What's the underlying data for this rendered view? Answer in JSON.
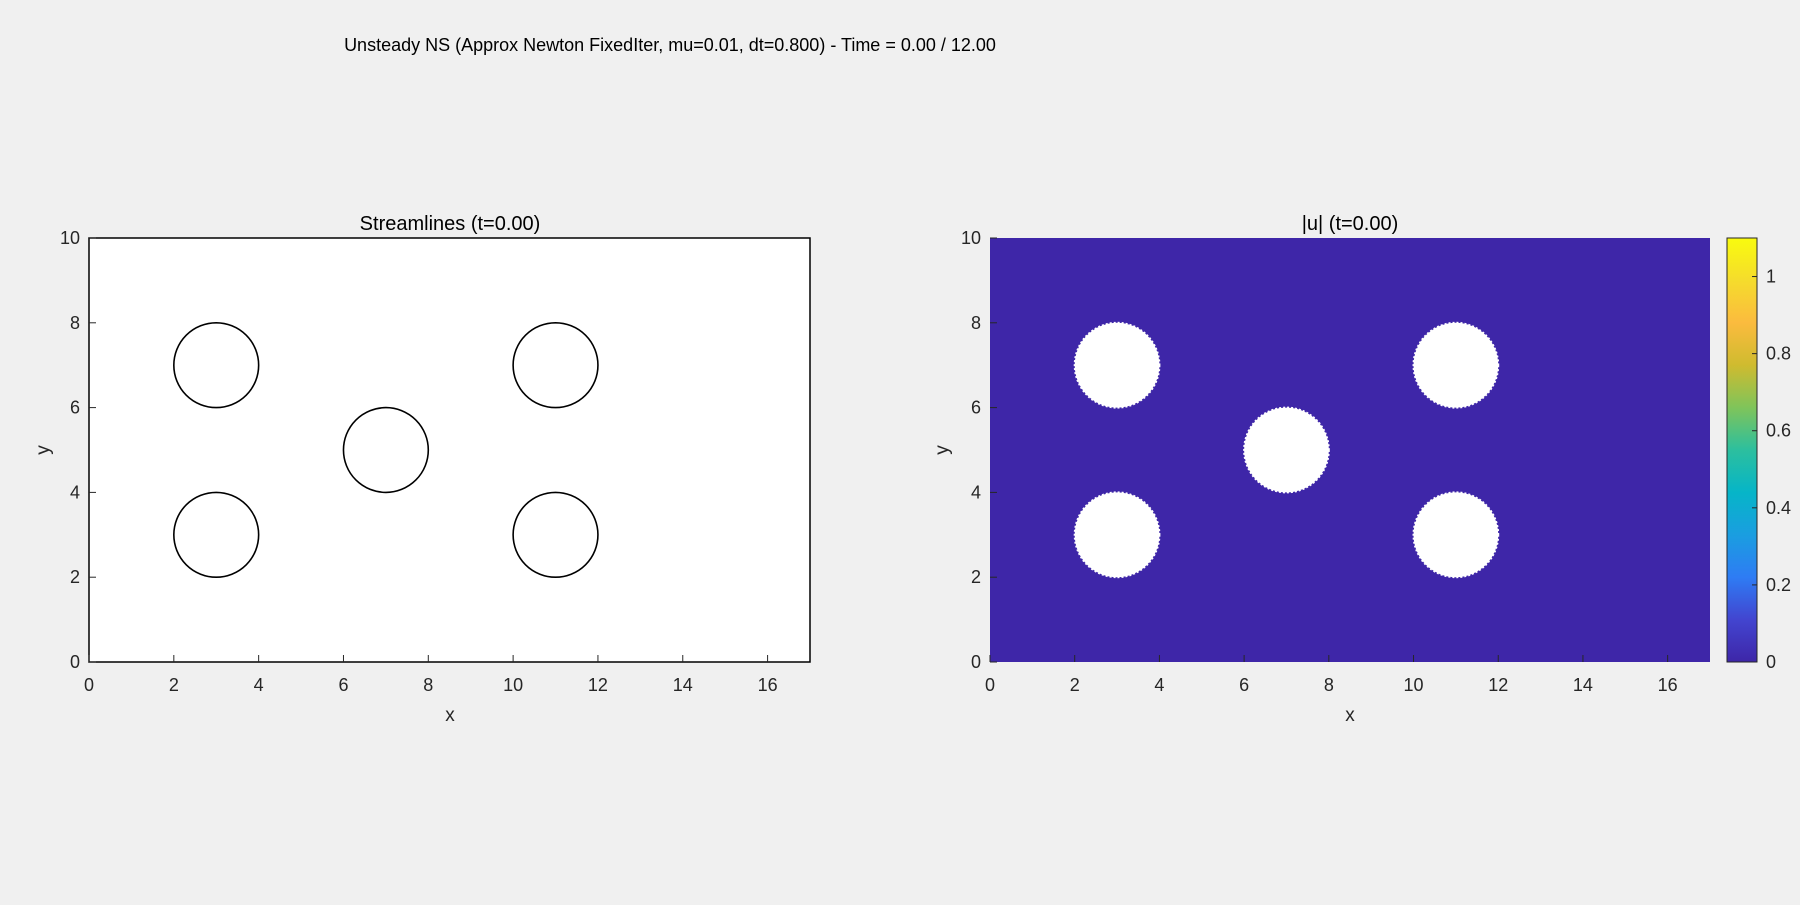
{
  "figure": {
    "suptitle": "Unsteady NS (Approx Newton FixedIter, mu=0.01, dt=0.800) - Time = 0.00 / 12.00"
  },
  "chart_data": [
    {
      "type": "line",
      "title": "Streamlines (t=0.00)",
      "xlabel": "x",
      "ylabel": "y",
      "xlim": [
        0,
        17
      ],
      "ylim": [
        0,
        10
      ],
      "xticks": [
        0,
        2,
        4,
        6,
        8,
        10,
        12,
        14,
        16
      ],
      "yticks": [
        0,
        2,
        4,
        6,
        8,
        10
      ],
      "grid": false,
      "obstacles": [
        {
          "cx": 3,
          "cy": 7,
          "r": 1
        },
        {
          "cx": 11,
          "cy": 7,
          "r": 1
        },
        {
          "cx": 7,
          "cy": 5,
          "r": 1
        },
        {
          "cx": 3,
          "cy": 3,
          "r": 1
        },
        {
          "cx": 11,
          "cy": 3,
          "r": 1
        }
      ],
      "background": "#ffffff",
      "outline_color": "#000000"
    },
    {
      "type": "heatmap",
      "title": "|u| (t=0.00)",
      "xlabel": "x",
      "ylabel": "y",
      "xlim": [
        0,
        17
      ],
      "ylim": [
        0,
        10
      ],
      "xticks": [
        0,
        2,
        4,
        6,
        8,
        10,
        12,
        14,
        16
      ],
      "yticks": [
        0,
        2,
        4,
        6,
        8,
        10
      ],
      "grid": false,
      "field_value": 0,
      "field_color": "#3e26a8",
      "obstacles": [
        {
          "cx": 3,
          "cy": 7,
          "r": 1
        },
        {
          "cx": 11,
          "cy": 7,
          "r": 1
        },
        {
          "cx": 7,
          "cy": 5,
          "r": 1
        },
        {
          "cx": 3,
          "cy": 3,
          "r": 1
        },
        {
          "cx": 11,
          "cy": 3,
          "r": 1
        }
      ],
      "colorbar": {
        "min": 0,
        "max": 1.1,
        "ticks": [
          0,
          0.2,
          0.4,
          0.6,
          0.8,
          1
        ],
        "colormap": "parula",
        "stops": [
          "#3e26a8",
          "#4245d0",
          "#2e7cf4",
          "#1a9ee0",
          "#06b5c8",
          "#2cbf9e",
          "#7fc45a",
          "#cfbb2f",
          "#fbbb3e",
          "#f5dc2c",
          "#f9fb0e"
        ]
      }
    }
  ]
}
